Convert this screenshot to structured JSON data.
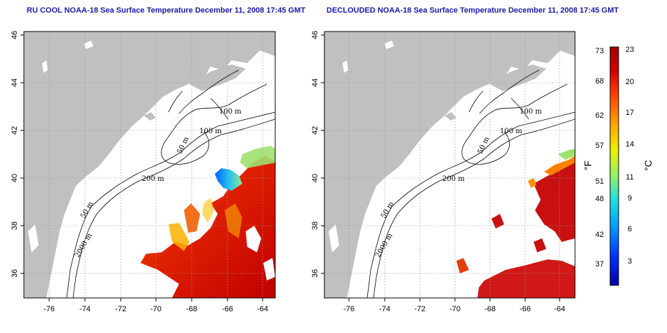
{
  "panels": [
    {
      "id": "left",
      "title": "RU COOL NOAA-18 Sea Surface Temperature December 11, 2008 17:45 GMT",
      "contour_labels": [
        "100 m",
        "100 m",
        "50 m",
        "200 m",
        "50 m",
        "2000 m"
      ]
    },
    {
      "id": "right",
      "title": "DECLOUDED NOAA-18 Sea Surface Temperature December 11, 2008 17:45 GMT",
      "contour_labels": [
        "100 m",
        "100 m",
        "50 m",
        "200 m",
        "50 m",
        "2000 m"
      ]
    }
  ],
  "axes": {
    "longitude_ticks": [
      "-76",
      "-74",
      "-72",
      "-70",
      "-68",
      "-66",
      "-64"
    ],
    "latitude_ticks": [
      "36",
      "38",
      "40",
      "42",
      "44",
      "46"
    ],
    "lon_range": [
      -77.2,
      -63.0
    ],
    "lat_range": [
      35.0,
      46.0
    ]
  },
  "colorbar": {
    "fahrenheit_label": "°F",
    "celsius_label": "°C",
    "fahrenheit_ticks": [
      "73",
      "68",
      "62",
      "57",
      "51",
      "48",
      "42",
      "37"
    ],
    "celsius_ticks": [
      "23",
      "20",
      "17",
      "14",
      "11",
      "9",
      "6",
      "3"
    ],
    "range_c": [
      0,
      23
    ],
    "colors": [
      "#0000a0",
      "#0030ff",
      "#00a0ff",
      "#20e0e0",
      "#a0f060",
      "#f0f000",
      "#ffa000",
      "#ff4000",
      "#d00000",
      "#a00000"
    ]
  },
  "colors": {
    "land": "#c0c0c0",
    "ocean": "#ffffff",
    "grid": "#9a9a9a",
    "title": "#1a1aa8"
  }
}
